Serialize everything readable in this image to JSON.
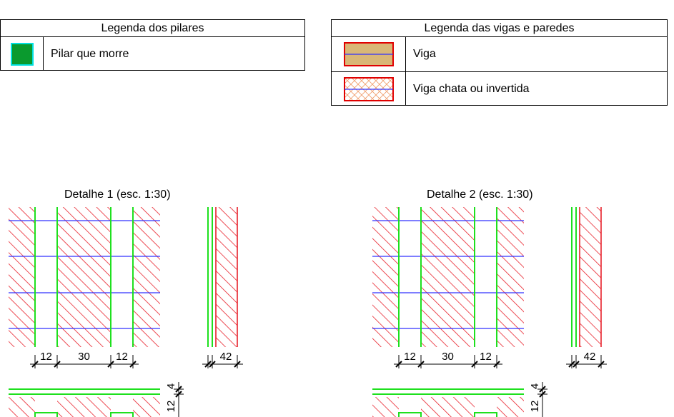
{
  "legend_pillars": {
    "title": "Legenda dos pilares",
    "items": [
      {
        "label": "Pilar que morre",
        "fill": "#0a9a2e",
        "outline": "#00e0e0"
      }
    ]
  },
  "legend_beams": {
    "title": "Legenda das vigas e paredes",
    "items": [
      {
        "label": "Viga",
        "fill": "#d9b776",
        "outline": "#e00000",
        "axis_color": "#3030ff"
      },
      {
        "label": "Viga chata ou invertida",
        "fill": "#ffffff",
        "outline": "#e00000",
        "hatch_color": "#f0a070",
        "axis_color": "#3030ff"
      }
    ]
  },
  "details": [
    {
      "title": "Detalhe 1 (esc. 1:30)",
      "plan_dims": [
        "12",
        "30",
        "12"
      ],
      "side_dim": "42",
      "section_dim": "4",
      "section_dim2": "12"
    },
    {
      "title": "Detalhe 2 (esc. 1:30)",
      "plan_dims": [
        "12",
        "30",
        "12"
      ],
      "side_dim": "42",
      "section_dim": "4",
      "section_dim2": "12"
    }
  ],
  "colors": {
    "hatch": "#e8202a",
    "wall_line": "#1ee01e",
    "axis": "#3030ff",
    "dimension": "#000000"
  }
}
